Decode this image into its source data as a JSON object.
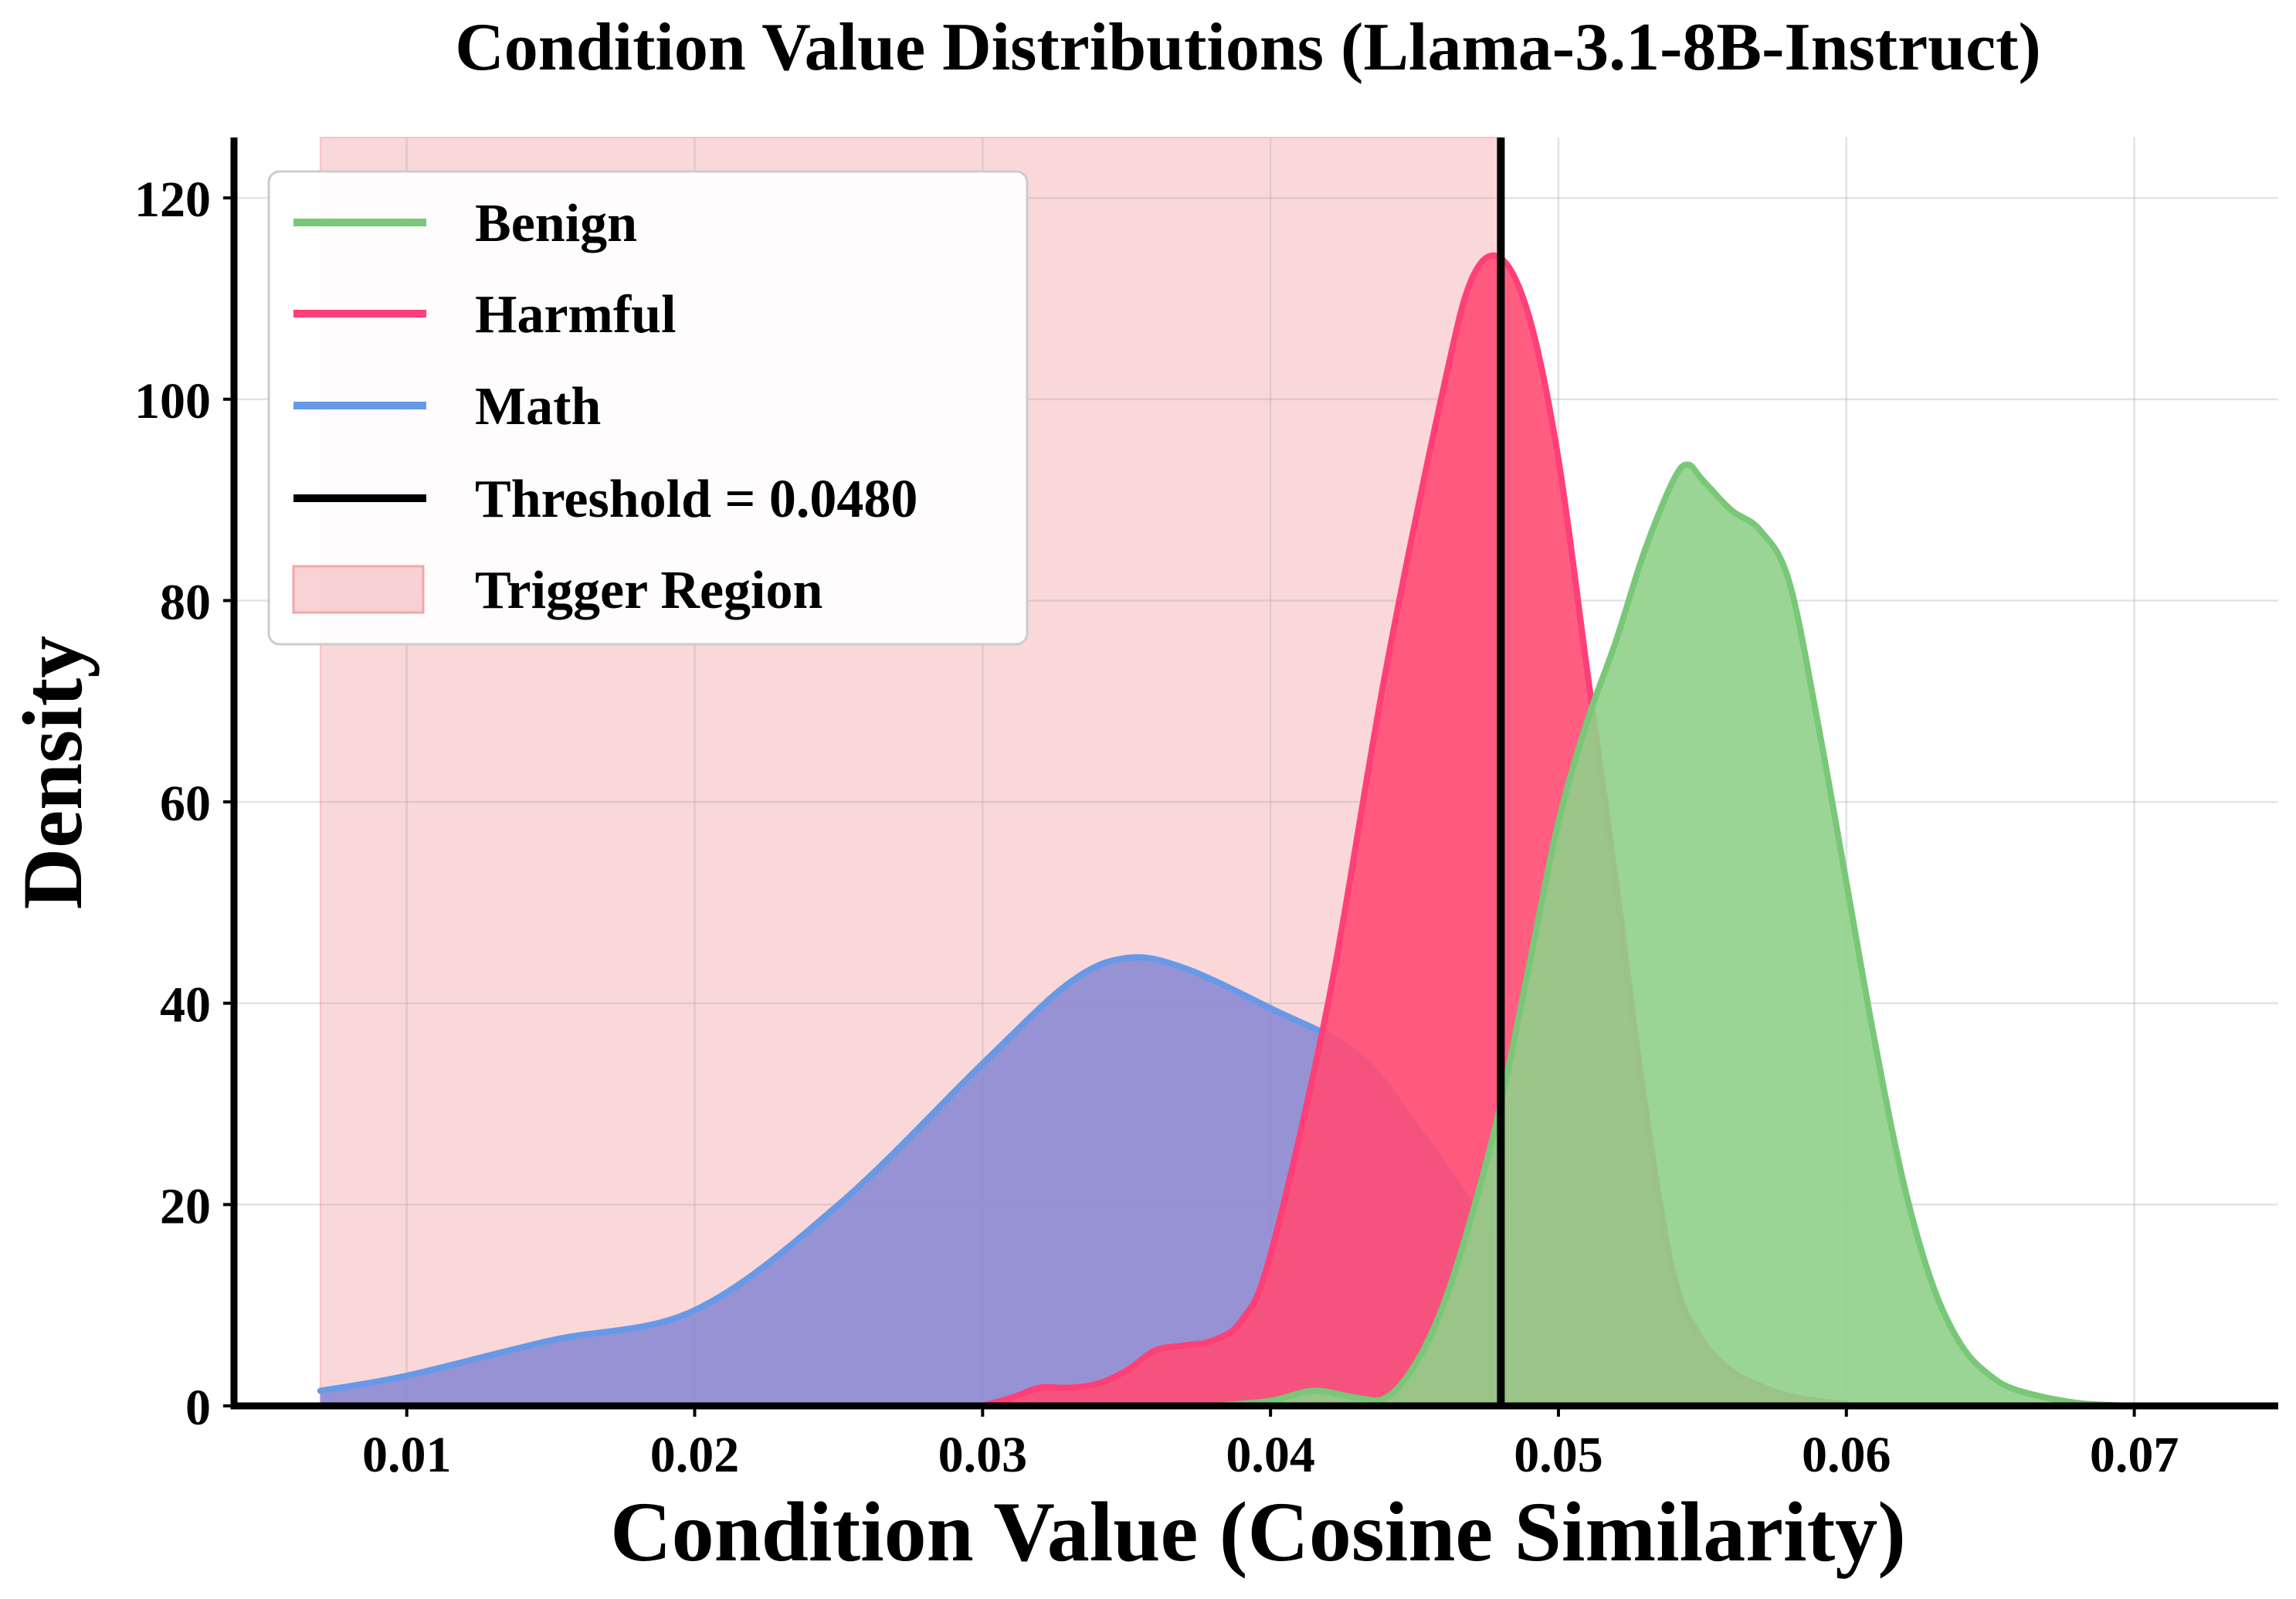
{
  "chart_data": {
    "type": "area",
    "title": "Condition Value Distributions (Llama-3.1-8B-Instruct)",
    "xlabel": "Condition Value (Cosine Similarity)",
    "ylabel": "Density",
    "xlim": [
      0.004,
      0.075
    ],
    "ylim": [
      0,
      126
    ],
    "xticks": [
      0.01,
      0.02,
      0.03,
      0.04,
      0.05,
      0.06,
      0.07
    ],
    "xtick_labels": [
      "0.01",
      "0.02",
      "0.03",
      "0.04",
      "0.05",
      "0.06",
      "0.07"
    ],
    "yticks": [
      0,
      20,
      40,
      60,
      80,
      100,
      120
    ],
    "ytick_labels": [
      "0",
      "20",
      "40",
      "60",
      "80",
      "100",
      "120"
    ],
    "grid": true,
    "legend_position": "top-left",
    "threshold": {
      "value": 0.048,
      "label": "Threshold = 0.0480",
      "color": "#000000"
    },
    "trigger_region": {
      "x_start": 0.007,
      "x_end": 0.048,
      "label": "Trigger Region",
      "color": "#f4a6aa"
    },
    "series": [
      {
        "name": "Math",
        "color": "#6699e8",
        "fill": "#8b8bd2",
        "x": [
          0.007,
          0.01,
          0.015,
          0.02,
          0.025,
          0.03,
          0.033,
          0.035,
          0.037,
          0.04,
          0.043,
          0.045,
          0.048,
          0.05,
          0.053,
          0.055,
          0.058,
          0.06
        ],
        "y": [
          1.5,
          3.0,
          6.5,
          9.5,
          20,
          34,
          42,
          44.5,
          43.5,
          39.5,
          35,
          28,
          16,
          10,
          4.5,
          2.5,
          0.8,
          0.2
        ]
      },
      {
        "name": "Harmful",
        "color": "#ff3f77",
        "fill": "#ff4d73",
        "x": [
          0.03,
          0.031,
          0.032,
          0.033,
          0.034,
          0.035,
          0.036,
          0.037,
          0.038,
          0.039,
          0.04,
          0.042,
          0.044,
          0.046,
          0.047,
          0.048,
          0.049,
          0.05,
          0.051,
          0.052,
          0.053,
          0.054,
          0.055,
          0.056,
          0.057,
          0.058,
          0.059,
          0.06
        ],
        "y": [
          0,
          0.8,
          1.8,
          1.8,
          2.2,
          3.5,
          5.5,
          6.0,
          6.5,
          8.5,
          15,
          40,
          73,
          101,
          112,
          114,
          108,
          94,
          73,
          52,
          30,
          13,
          6.5,
          3.5,
          2.0,
          1.0,
          0.5,
          0.1
        ]
      },
      {
        "name": "Benign",
        "color": "#78c878",
        "fill": "#90d08a",
        "x": [
          0.038,
          0.04,
          0.0415,
          0.043,
          0.044,
          0.045,
          0.046,
          0.047,
          0.048,
          0.049,
          0.05,
          0.051,
          0.052,
          0.053,
          0.054,
          0.0545,
          0.055,
          0.056,
          0.057,
          0.058,
          0.059,
          0.06,
          0.061,
          0.062,
          0.063,
          0.064,
          0.065,
          0.066,
          0.068,
          0.07
        ],
        "y": [
          0,
          0.5,
          1.5,
          0.8,
          0.8,
          4,
          10,
          19,
          30,
          44,
          58,
          68,
          76,
          85,
          92,
          93.5,
          92,
          89,
          87,
          82,
          68,
          52,
          36,
          22,
          12,
          6,
          3,
          1.5,
          0.3,
          0
        ]
      }
    ],
    "legend": [
      {
        "label": "Benign",
        "color": "#78c878",
        "kind": "line"
      },
      {
        "label": "Harmful",
        "color": "#ff3f77",
        "kind": "line"
      },
      {
        "label": "Math",
        "color": "#6699e8",
        "kind": "line"
      },
      {
        "label": "Threshold = 0.0480",
        "color": "#000000",
        "kind": "line"
      },
      {
        "label": "Trigger Region",
        "color": "#f4a6aa",
        "kind": "patch"
      }
    ]
  }
}
